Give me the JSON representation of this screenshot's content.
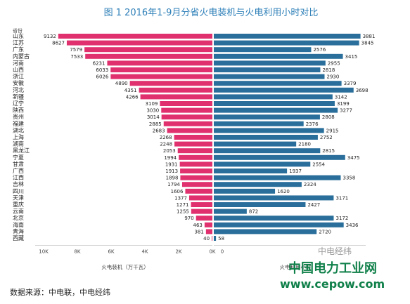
{
  "title": "图 1 2016年1-9月分省火电装机与火电利用小时对比",
  "source_note": "数据来源：中电联，中电经纬",
  "watermark": {
    "main": "中国电力工业网",
    "url": "www.cepow.com",
    "wechat": "中电经纬"
  },
  "colors": {
    "left_bar": "#e0316e",
    "right_bar": "#2a6f9b",
    "title": "#2d7fb8",
    "watermark": "#10804a"
  },
  "chart_data": {
    "type": "bar",
    "orientation": "horizontal-butterfly",
    "row_header": "省份",
    "categories": [
      "山东",
      "江苏",
      "广东",
      "内蒙古",
      "河南",
      "山西",
      "浙江",
      "安徽",
      "河北",
      "新疆",
      "辽宁",
      "陕西",
      "贵州",
      "福建",
      "湖北",
      "上海",
      "湖南",
      "黑龙江",
      "宁夏",
      "甘肃",
      "广西",
      "江西",
      "吉林",
      "四川",
      "天津",
      "重庆",
      "云南",
      "北京",
      "海南",
      "青海",
      "西藏"
    ],
    "series": [
      {
        "name": "火电装机（万千瓦）",
        "values": [
          9132,
          8627,
          7579,
          7533,
          6231,
          6033,
          6026,
          4890,
          4351,
          4266,
          3109,
          3030,
          3014,
          2885,
          2683,
          2268,
          2248,
          2053,
          1994,
          1931,
          1913,
          1898,
          1794,
          1606,
          1377,
          1271,
          1255,
          970,
          463,
          381,
          40
        ]
      },
      {
        "name": "火电利用小时",
        "values": [
          3881,
          3845,
          2576,
          3415,
          2955,
          2818,
          2930,
          3379,
          3698,
          3142,
          3199,
          3277,
          2808,
          2376,
          2915,
          2752,
          2180,
          2815,
          3475,
          2554,
          1937,
          3358,
          2324,
          1620,
          3171,
          2427,
          872,
          3172,
          3436,
          2720,
          58
        ]
      }
    ],
    "left_axis": {
      "label": "火电装机（万千瓦）",
      "ticks": [
        "10K",
        "8K",
        "6K",
        "4K",
        "2K",
        "0K"
      ],
      "range": [
        0,
        10000
      ]
    },
    "right_axis": {
      "label": "火电利用小时",
      "ticks": [
        "0"
      ],
      "range": [
        0,
        4000
      ]
    }
  }
}
